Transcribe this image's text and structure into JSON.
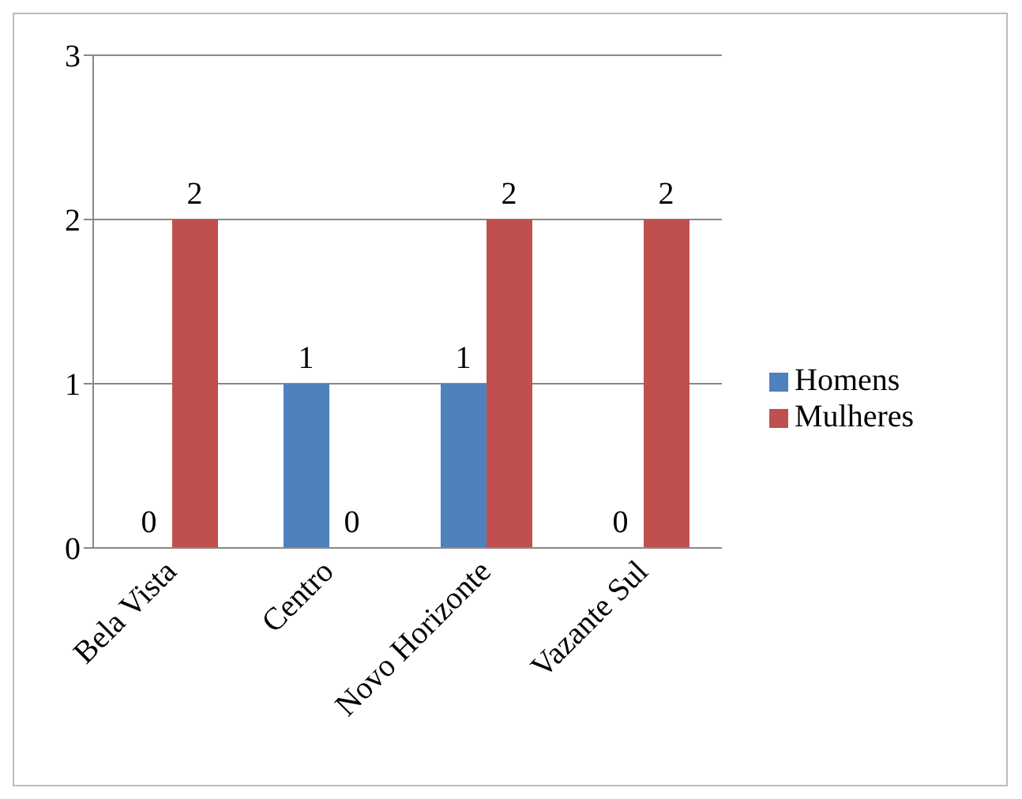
{
  "chart_data": {
    "type": "bar",
    "categories": [
      "Bela Vista",
      "Centro",
      "Novo Horizonte",
      "Vazante Sul"
    ],
    "series": [
      {
        "name": "Homens",
        "color": "#4f81bd",
        "values": [
          0,
          1,
          1,
          0
        ]
      },
      {
        "name": "Mulheres",
        "color": "#c0504d",
        "values": [
          2,
          0,
          2,
          2
        ]
      }
    ],
    "ylim": [
      0,
      3
    ],
    "yticks": [
      0,
      1,
      2,
      3
    ],
    "grid": "y",
    "legend": "right",
    "data_labels": true
  }
}
